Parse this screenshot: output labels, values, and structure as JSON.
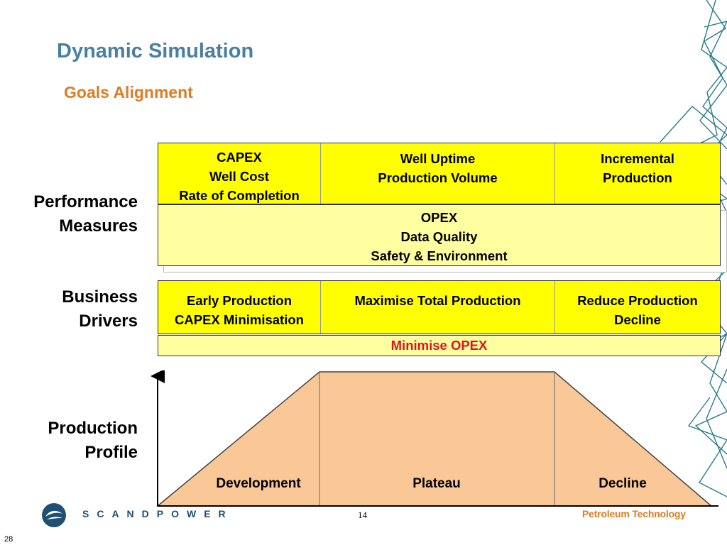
{
  "title": "Dynamic Simulation",
  "subtitle": "Goals Alignment",
  "labels": {
    "performance": [
      "Performance",
      "Measures"
    ],
    "business": [
      "Business",
      "Drivers"
    ],
    "production": [
      "Production",
      "Profile"
    ]
  },
  "performance_measures": {
    "top_cells": [
      {
        "lines": [
          "CAPEX",
          "Well Cost",
          "Rate of Completion"
        ]
      },
      {
        "lines": [
          "Well Uptime",
          "Production Volume"
        ]
      },
      {
        "lines": [
          "Incremental",
          "Production"
        ]
      }
    ],
    "bottom": {
      "lines": [
        "OPEX",
        "Data Quality",
        "Safety & Environment"
      ]
    }
  },
  "business_drivers": {
    "top_cells": [
      {
        "lines": [
          "Early Production",
          "CAPEX Minimisation"
        ]
      },
      {
        "lines": [
          "Maximise Total Production"
        ]
      },
      {
        "lines": [
          "Reduce Production",
          "Decline"
        ]
      }
    ],
    "bottom": "Minimise OPEX"
  },
  "profile_phases": [
    "Development",
    "Plateau",
    "Decline"
  ],
  "colors": {
    "title": "#4a7fa3",
    "subtitle": "#e07b22",
    "box_bright": "#ffff00",
    "box_pale": "#ffffa0",
    "profile_fill": "#fac896",
    "highlight_text": "#e0141e",
    "decoration": "#2a7c8c"
  },
  "footer": {
    "brand": "SCANDPOWER",
    "page_number": "14",
    "tagline": "Petroleum Technology",
    "slide_number": "28"
  },
  "icons": [
    "scandpower-logo-icon",
    "network-lines-decoration"
  ]
}
